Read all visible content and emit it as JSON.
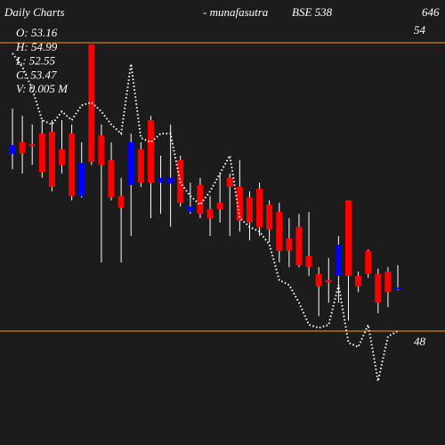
{
  "chart_data": {
    "type": "candlestick",
    "title": "Daily Charts",
    "subtitle": "- munafasutra",
    "symbol": "BSE 538",
    "code": "646",
    "info": [
      "O: 53.16",
      "H: 54.99",
      "L: 52.55",
      "C: 53.47",
      "V: 0.005 M"
    ],
    "open": [
      51.69,
      51.93,
      51.89,
      52.11,
      52.15,
      51.78,
      52.11,
      50.81,
      53.96,
      52.07,
      51.56,
      50.81,
      51.04,
      51.78,
      52.39,
      51.09,
      51.07,
      51.56,
      50.48,
      51.04,
      50.54,
      50.67,
      51.19,
      51.0,
      50.78,
      50.96,
      50.63,
      50.48,
      49.93,
      50.17,
      49.56,
      49.19,
      49.06,
      49.15,
      50.72,
      49.15,
      49.67,
      49.19,
      49.24,
      48.87
    ],
    "high": [
      52.63,
      52.48,
      52.3,
      52.39,
      52.39,
      52.39,
      52.3,
      51.93,
      53.96,
      52.3,
      51.93,
      51.19,
      52.11,
      51.93,
      52.48,
      51.65,
      52.3,
      51.65,
      51.09,
      51.19,
      50.81,
      51.28,
      51.28,
      51.56,
      50.91,
      51.09,
      50.72,
      50.67,
      50.35,
      50.44,
      50.48,
      49.33,
      49.52,
      49.98,
      50.72,
      49.24,
      49.7,
      49.3,
      49.33,
      49.37
    ],
    "low": [
      51.37,
      51.28,
      51.46,
      51.19,
      50.91,
      51.28,
      50.72,
      50.78,
      51.46,
      49.43,
      50.72,
      49.43,
      49.98,
      51.0,
      50.35,
      50.44,
      50.17,
      50.59,
      50.44,
      50.35,
      49.98,
      50.26,
      49.98,
      50.07,
      49.89,
      49.98,
      49.85,
      49.43,
      49.33,
      49.33,
      49.15,
      48.31,
      48.59,
      48.59,
      48.22,
      48.81,
      49.11,
      48.37,
      48.5,
      48.85
    ],
    "close": [
      51.87,
      51.7,
      51.85,
      51.31,
      51.0,
      51.46,
      50.81,
      51.5,
      51.52,
      51.46,
      50.78,
      50.57,
      51.93,
      51.09,
      51.09,
      51.19,
      51.19,
      50.67,
      50.59,
      50.44,
      50.35,
      50.54,
      51.0,
      50.3,
      50.26,
      50.17,
      50.11,
      49.67,
      49.67,
      49.37,
      49.33,
      48.93,
      49.02,
      49.8,
      49.15,
      48.93,
      49.19,
      48.59,
      48.81,
      48.91
    ],
    "up_color": "#0000ff",
    "down_color": "#ff0000",
    "overlay": {
      "color": "#ffffff",
      "values": [
        53.78,
        53.5,
        53.04,
        52.39,
        52.3,
        52.57,
        52.39,
        52.7,
        52.76,
        52.57,
        52.3,
        52.11,
        53.56,
        52.02,
        51.93,
        52.11,
        52.11,
        51.09,
        50.81,
        50.63,
        50.91,
        51.28,
        51.65,
        50.35,
        50.17,
        50.07,
        49.8,
        49.06,
        48.96,
        48.59,
        48.13,
        48.07,
        48.13,
        48.96,
        47.76,
        47.67,
        48.13,
        46.96,
        47.89,
        48.0
      ]
    },
    "ylim": [
      45.63,
      54.89
    ],
    "yticks": [
      54,
      48
    ],
    "tick_color": "#ff9900"
  }
}
